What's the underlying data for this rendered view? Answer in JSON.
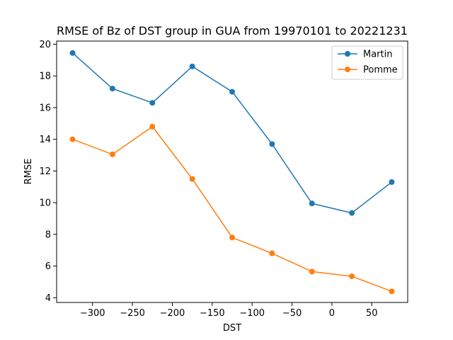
{
  "chart_data": {
    "type": "line",
    "title": "RMSE of Bz of DST group in GUA from 19970101 to 20221231",
    "xlabel": "DST",
    "ylabel": "RMSE",
    "x": [
      -325,
      -275,
      -225,
      -175,
      -125,
      -75,
      -25,
      25,
      75
    ],
    "xlim": [
      -345,
      95
    ],
    "ylim": [
      3.7,
      20.2
    ],
    "xticks": [
      -300,
      -250,
      -200,
      -150,
      -100,
      -50,
      0,
      50
    ],
    "xtick_labels": [
      "−300",
      "−250",
      "−200",
      "−150",
      "−100",
      "−50",
      "0",
      "50"
    ],
    "yticks": [
      4,
      6,
      8,
      10,
      12,
      14,
      16,
      18,
      20
    ],
    "ytick_labels": [
      "4",
      "6",
      "8",
      "10",
      "12",
      "14",
      "16",
      "18",
      "20"
    ],
    "grid": false,
    "legend_position": "top-right",
    "series": [
      {
        "name": "Martin",
        "color": "#1f77b4",
        "values": [
          19.45,
          17.2,
          16.3,
          18.6,
          17.0,
          13.7,
          9.95,
          9.35,
          11.3
        ]
      },
      {
        "name": "Pomme",
        "color": "#ff7f0e",
        "values": [
          14.0,
          13.05,
          14.8,
          11.5,
          7.8,
          6.8,
          5.65,
          5.35,
          4.4
        ]
      }
    ]
  }
}
